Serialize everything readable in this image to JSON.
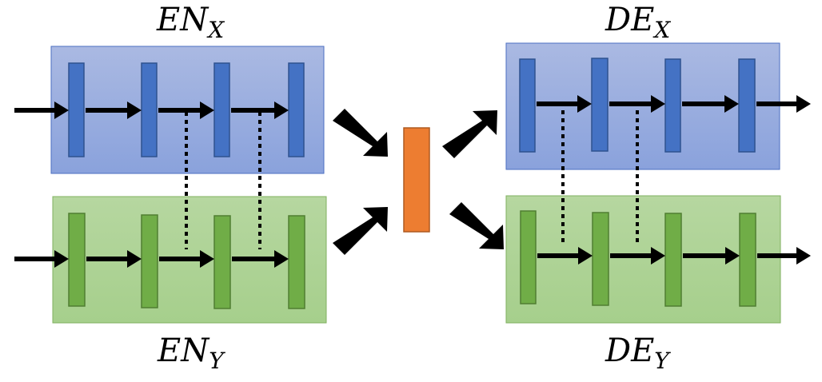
{
  "labels": {
    "encoder_x": {
      "main": "EN",
      "sub": "X"
    },
    "encoder_y": {
      "main": "EN",
      "sub": "Y"
    },
    "decoder_x": {
      "main": "DE",
      "sub": "X"
    },
    "decoder_y": {
      "main": "DE",
      "sub": "Y"
    }
  },
  "colors": {
    "blue_panel_top": "#aab9e2",
    "blue_panel_bottom": "#8aa2dc",
    "blue_panel_border": "#4c6fc2",
    "blue_layer": "#4472c4",
    "blue_layer_border": "#2f528f",
    "green_panel_top": "#b6d7a0",
    "green_panel_bottom": "#a6cf8c",
    "green_panel_border": "#80b060",
    "green_layer": "#70ad47",
    "green_layer_border": "#507e32",
    "latent": "#ed7d31",
    "latent_border": "#ae5a21",
    "arrow": "#000000"
  }
}
